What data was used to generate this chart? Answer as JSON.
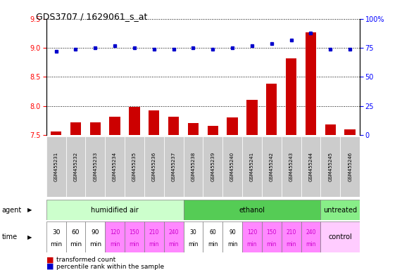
{
  "title": "GDS3707 / 1629061_s_at",
  "samples": [
    "GSM455231",
    "GSM455232",
    "GSM455233",
    "GSM455234",
    "GSM455235",
    "GSM455236",
    "GSM455237",
    "GSM455238",
    "GSM455239",
    "GSM455240",
    "GSM455241",
    "GSM455242",
    "GSM455243",
    "GSM455244",
    "GSM455245",
    "GSM455246"
  ],
  "bar_values": [
    7.56,
    7.72,
    7.72,
    7.82,
    7.98,
    7.92,
    7.82,
    7.7,
    7.66,
    7.8,
    8.11,
    8.38,
    8.82,
    9.27,
    7.68,
    7.6
  ],
  "dot_values": [
    72,
    74,
    75,
    77,
    75,
    74,
    74,
    75,
    74,
    75,
    77,
    79,
    82,
    88,
    74,
    74
  ],
  "bar_color": "#cc0000",
  "dot_color": "#0000cc",
  "ylim_left": [
    7.5,
    9.5
  ],
  "ylim_right": [
    0,
    100
  ],
  "yticks_left": [
    7.5,
    8.0,
    8.5,
    9.0,
    9.5
  ],
  "yticks_right": [
    0,
    25,
    50,
    75,
    100
  ],
  "yticklabels_right": [
    "0",
    "25",
    "50",
    "75",
    "100%"
  ],
  "grid_values": [
    7.5,
    8.0,
    8.5,
    9.0,
    9.5
  ],
  "agent_groups": [
    {
      "label": "humidified air",
      "start": 0,
      "end": 7,
      "color": "#ccffcc"
    },
    {
      "label": "ethanol",
      "start": 7,
      "end": 14,
      "color": "#55cc55"
    },
    {
      "label": "untreated",
      "start": 14,
      "end": 16,
      "color": "#88ee88"
    }
  ],
  "time_labels_top": [
    "30",
    "60",
    "90",
    "120",
    "150",
    "210",
    "240",
    "30",
    "60",
    "90",
    "120",
    "150",
    "210",
    "240"
  ],
  "time_labels_bot": [
    "min",
    "min",
    "min",
    "min",
    "min",
    "min",
    "min",
    "min",
    "min",
    "min",
    "min",
    "min",
    "min",
    "min"
  ],
  "time_colors": [
    "#ffffff",
    "#ffffff",
    "#ffffff",
    "#ff88ff",
    "#ff88ff",
    "#ff88ff",
    "#ff88ff",
    "#ffffff",
    "#ffffff",
    "#ffffff",
    "#ff88ff",
    "#ff88ff",
    "#ff88ff",
    "#ff88ff"
  ],
  "time_text_colors": [
    "#000000",
    "#000000",
    "#000000",
    "#cc00cc",
    "#cc00cc",
    "#cc00cc",
    "#cc00cc",
    "#000000",
    "#000000",
    "#000000",
    "#cc00cc",
    "#cc00cc",
    "#cc00cc",
    "#cc00cc"
  ],
  "control_label": "control",
  "control_color": "#ffccff",
  "agent_label": "agent",
  "time_label": "time",
  "legend1": "transformed count",
  "legend2": "percentile rank within the sample",
  "fig_bg": "#ffffff",
  "sample_box_color": "#cccccc",
  "left_label_color": "#000000"
}
